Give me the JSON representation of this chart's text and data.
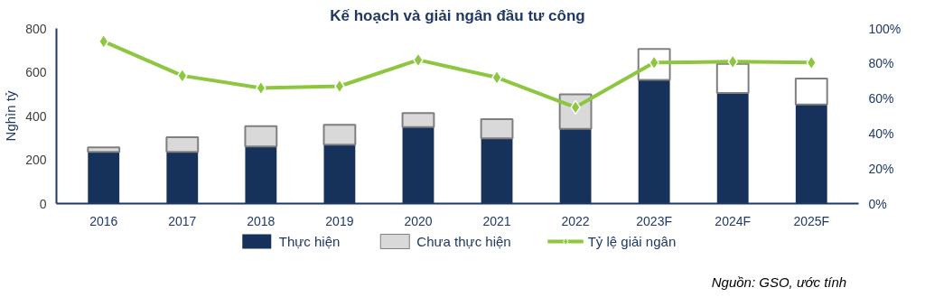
{
  "chart_data": {
    "type": "bar",
    "title": "Kế hoạch và giải ngân đầu tư công",
    "ylabel": "Nghìn tỷ",
    "categories": [
      "2016",
      "2017",
      "2018",
      "2019",
      "2020",
      "2021",
      "2022",
      "2023F",
      "2024F",
      "2025F"
    ],
    "stacked": true,
    "series": [
      {
        "name": "Thực hiện",
        "color": "#17325a",
        "values": [
          236,
          236,
          261,
          269,
          349,
          298,
          341,
          565,
          505,
          453
        ]
      },
      {
        "name": "Chưa thực hiện",
        "color": "#d9d9d9",
        "colors": [
          "#d9d9d9",
          "#d9d9d9",
          "#d9d9d9",
          "#d9d9d9",
          "#d9d9d9",
          "#d9d9d9",
          "#d9d9d9",
          "#ffffff",
          "#ffffff",
          "#ffffff"
        ],
        "values": [
          21,
          67,
          93,
          91,
          64,
          88,
          158,
          141,
          133,
          118
        ]
      },
      {
        "name": "Tỷ lệ giải ngân",
        "type": "line",
        "axis": "y2",
        "color": "#8dc63f",
        "marker": "diamond",
        "values": [
          92.6,
          73,
          66,
          67,
          82,
          72,
          55,
          80.5,
          81,
          80.5
        ]
      }
    ],
    "ylim": [
      0,
      800
    ],
    "yticks": [
      0,
      200,
      400,
      600,
      800
    ],
    "y2lim": [
      0,
      100
    ],
    "y2ticks": [
      {
        "value": 0,
        "label": "0%"
      },
      {
        "value": 20,
        "label": "20%"
      },
      {
        "value": 40,
        "label": "40%"
      },
      {
        "value": 60,
        "label": "60%"
      },
      {
        "value": 80,
        "label": "80%"
      },
      {
        "value": 100,
        "label": "100%"
      }
    ],
    "grid": false,
    "legend": "bottom",
    "annotations": [
      "Nguồn: GSO, ước tính"
    ]
  }
}
